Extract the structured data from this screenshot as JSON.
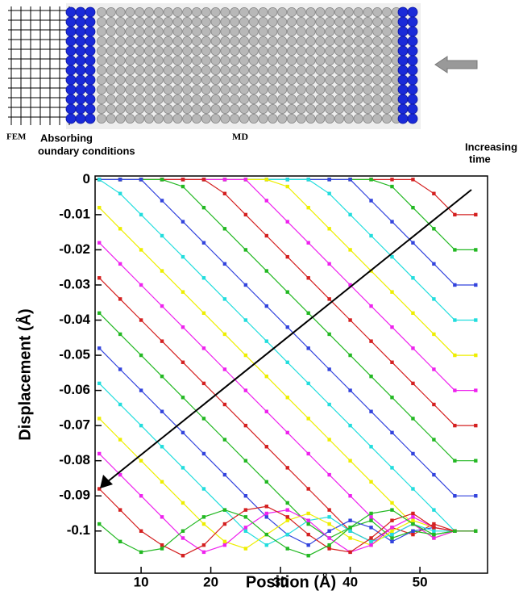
{
  "schematic": {
    "fem_label": "FEM",
    "boundary_label": [
      "Absorbing",
      "oundary conditions"
    ],
    "md_label": "MD"
  },
  "chart_data": {
    "type": "line",
    "annotation": [
      "Increasing",
      "time"
    ],
    "xlabel": "Position (Å)",
    "ylabel": "Displacement (Å)",
    "xlim": [
      3.4,
      59.7
    ],
    "ylim": [
      -0.112,
      0.001
    ],
    "xticks": [
      10,
      20,
      30,
      40,
      50
    ],
    "yticks": [
      0,
      -0.01,
      -0.02,
      -0.03,
      -0.04,
      -0.05,
      -0.06,
      -0.07,
      -0.08,
      -0.09,
      -0.1
    ],
    "x": [
      4,
      7,
      10,
      13,
      16,
      19,
      22,
      25,
      28,
      31,
      34,
      37,
      40,
      43,
      46,
      49,
      52,
      55,
      58
    ],
    "series": [
      {
        "color": "#d42020",
        "values": [
          0,
          0,
          0,
          0,
          0,
          0,
          0,
          0,
          0,
          0,
          0,
          0,
          0,
          0,
          0,
          0,
          -0.004,
          -0.01,
          -0.01
        ]
      },
      {
        "color": "#22b822",
        "values": [
          0,
          0,
          0,
          0,
          0,
          0,
          0,
          0,
          0,
          0,
          0,
          0,
          0,
          0,
          -0.002,
          -0.008,
          -0.014,
          -0.02,
          -0.02
        ]
      },
      {
        "color": "#3344dd",
        "values": [
          0,
          0,
          0,
          0,
          0,
          0,
          0,
          0,
          0,
          0,
          0,
          0,
          0,
          -0.006,
          -0.012,
          -0.018,
          -0.024,
          -0.03,
          -0.03
        ]
      },
      {
        "color": "#22dddd",
        "values": [
          0,
          0,
          0,
          0,
          0,
          0,
          0,
          0,
          0,
          0,
          0,
          -0.004,
          -0.01,
          -0.016,
          -0.022,
          -0.028,
          -0.034,
          -0.04,
          -0.04
        ]
      },
      {
        "color": "#eeee00",
        "values": [
          0,
          0,
          0,
          0,
          0,
          0,
          0,
          0,
          0,
          -0.002,
          -0.008,
          -0.014,
          -0.02,
          -0.026,
          -0.032,
          -0.038,
          -0.044,
          -0.05,
          -0.05
        ]
      },
      {
        "color": "#ee22ee",
        "values": [
          0,
          0,
          0,
          0,
          0,
          0,
          0,
          0,
          -0.006,
          -0.012,
          -0.018,
          -0.024,
          -0.03,
          -0.036,
          -0.042,
          -0.048,
          -0.054,
          -0.06,
          -0.06
        ]
      },
      {
        "color": "#d42020",
        "values": [
          0,
          0,
          0,
          0,
          0,
          0,
          -0.004,
          -0.01,
          -0.016,
          -0.022,
          -0.028,
          -0.034,
          -0.04,
          -0.046,
          -0.052,
          -0.058,
          -0.064,
          -0.07,
          -0.07
        ]
      },
      {
        "color": "#22b822",
        "values": [
          0,
          0,
          0,
          0,
          -0.002,
          -0.008,
          -0.014,
          -0.02,
          -0.026,
          -0.032,
          -0.038,
          -0.044,
          -0.05,
          -0.056,
          -0.062,
          -0.068,
          -0.074,
          -0.08,
          -0.08
        ]
      },
      {
        "color": "#3344dd",
        "values": [
          0,
          0,
          0,
          -0.006,
          -0.012,
          -0.018,
          -0.024,
          -0.03,
          -0.036,
          -0.042,
          -0.048,
          -0.054,
          -0.06,
          -0.066,
          -0.072,
          -0.078,
          -0.084,
          -0.09,
          -0.09
        ]
      },
      {
        "color": "#22dddd",
        "values": [
          0,
          -0.004,
          -0.01,
          -0.016,
          -0.022,
          -0.028,
          -0.034,
          -0.04,
          -0.046,
          -0.052,
          -0.058,
          -0.064,
          -0.07,
          -0.076,
          -0.082,
          -0.088,
          -0.094,
          -0.1,
          -0.1
        ]
      },
      {
        "color": "#eeee00",
        "values": [
          -0.008,
          -0.014,
          -0.02,
          -0.026,
          -0.032,
          -0.038,
          -0.044,
          -0.05,
          -0.056,
          -0.062,
          -0.068,
          -0.074,
          -0.08,
          -0.086,
          -0.092,
          -0.098,
          -0.102,
          -0.1,
          -0.1
        ]
      },
      {
        "color": "#ee22ee",
        "values": [
          -0.018,
          -0.024,
          -0.03,
          -0.036,
          -0.042,
          -0.048,
          -0.054,
          -0.06,
          -0.066,
          -0.072,
          -0.078,
          -0.084,
          -0.09,
          -0.096,
          -0.101,
          -0.098,
          -0.102,
          -0.1,
          -0.1
        ]
      },
      {
        "color": "#d42020",
        "values": [
          -0.028,
          -0.034,
          -0.04,
          -0.046,
          -0.052,
          -0.058,
          -0.064,
          -0.07,
          -0.076,
          -0.082,
          -0.088,
          -0.094,
          -0.1,
          -0.103,
          -0.099,
          -0.101,
          -0.098,
          -0.1,
          -0.1
        ]
      },
      {
        "color": "#22b822",
        "values": [
          -0.038,
          -0.044,
          -0.05,
          -0.056,
          -0.062,
          -0.068,
          -0.074,
          -0.08,
          -0.086,
          -0.092,
          -0.098,
          -0.102,
          -0.099,
          -0.097,
          -0.102,
          -0.1,
          -0.101,
          -0.1,
          -0.1
        ]
      },
      {
        "color": "#3344dd",
        "values": [
          -0.048,
          -0.054,
          -0.06,
          -0.066,
          -0.072,
          -0.078,
          -0.084,
          -0.09,
          -0.096,
          -0.101,
          -0.104,
          -0.1,
          -0.097,
          -0.099,
          -0.103,
          -0.1,
          -0.099,
          -0.1,
          -0.1
        ]
      },
      {
        "color": "#22dddd",
        "values": [
          -0.058,
          -0.064,
          -0.07,
          -0.076,
          -0.082,
          -0.088,
          -0.094,
          -0.1,
          -0.104,
          -0.101,
          -0.097,
          -0.096,
          -0.1,
          -0.103,
          -0.101,
          -0.098,
          -0.1,
          -0.1,
          -0.1
        ]
      },
      {
        "color": "#eeee00",
        "values": [
          -0.068,
          -0.074,
          -0.08,
          -0.086,
          -0.092,
          -0.098,
          -0.103,
          -0.105,
          -0.101,
          -0.097,
          -0.095,
          -0.098,
          -0.102,
          -0.104,
          -0.1,
          -0.097,
          -0.099,
          -0.1,
          -0.1
        ]
      },
      {
        "color": "#ee22ee",
        "values": [
          -0.078,
          -0.084,
          -0.09,
          -0.096,
          -0.102,
          -0.106,
          -0.104,
          -0.099,
          -0.095,
          -0.094,
          -0.097,
          -0.102,
          -0.106,
          -0.104,
          -0.099,
          -0.096,
          -0.099,
          -0.1,
          -0.1
        ]
      },
      {
        "color": "#d42020",
        "values": [
          -0.088,
          -0.094,
          -0.1,
          -0.104,
          -0.107,
          -0.104,
          -0.098,
          -0.094,
          -0.093,
          -0.096,
          -0.101,
          -0.105,
          -0.106,
          -0.102,
          -0.097,
          -0.095,
          -0.099,
          -0.1,
          -0.1
        ]
      },
      {
        "color": "#22b822",
        "values": [
          -0.098,
          -0.103,
          -0.106,
          -0.105,
          -0.1,
          -0.096,
          -0.094,
          -0.096,
          -0.101,
          -0.105,
          -0.107,
          -0.104,
          -0.099,
          -0.095,
          -0.094,
          -0.098,
          -0.101,
          -0.1,
          -0.1
        ]
      }
    ]
  }
}
